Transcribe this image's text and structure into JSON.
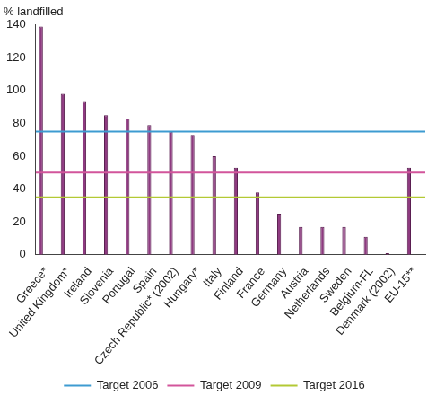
{
  "chart_data": {
    "type": "bar",
    "y_label": "% landfilled",
    "categories": [
      "Greece*",
      "United Kingdom*",
      "Ireland",
      "Slovenia",
      "Portugal",
      "Spain",
      "Czech Republic* (2002)",
      "Hungary*",
      "Italy",
      "Finland",
      "France",
      "Germany",
      "Austria",
      "Netherlands",
      "Sweden",
      "Belgium-FL",
      "Denmark (2002)",
      "EU-15**"
    ],
    "values": [
      139,
      98,
      93,
      85,
      83,
      79,
      75,
      73,
      60,
      53,
      38,
      25,
      17,
      17,
      17,
      11,
      1,
      53
    ],
    "color": "#8e3a80",
    "ylim": [
      0,
      140
    ],
    "yticks": [
      0,
      20,
      40,
      60,
      80,
      100,
      120,
      140
    ],
    "grid": false,
    "legend": "bottom",
    "targets": [
      {
        "name": "Target 2006",
        "value": 75,
        "color": "#3d9bd1"
      },
      {
        "name": "Target 2009",
        "value": 50,
        "color": "#d2559b"
      },
      {
        "name": "Target 2016",
        "value": 35,
        "color": "#b3c934"
      }
    ]
  }
}
